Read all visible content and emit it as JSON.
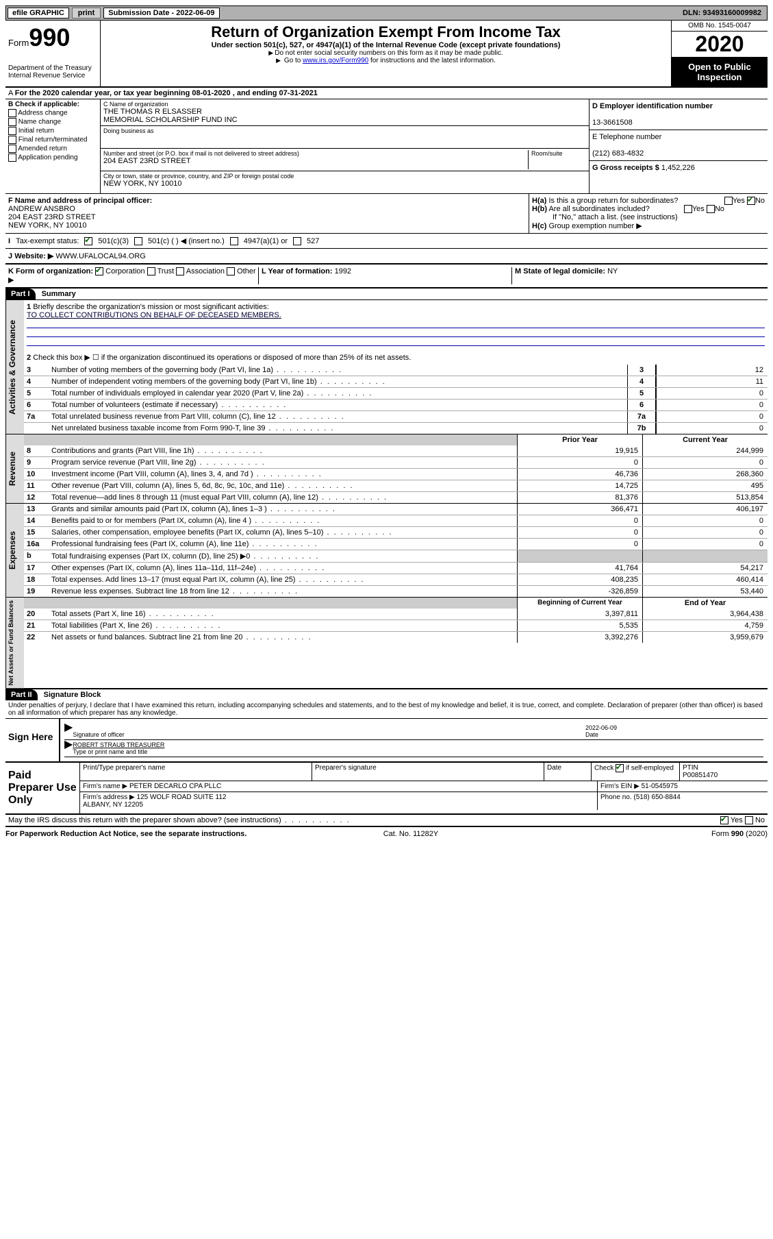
{
  "topbar": {
    "efile": "efile GRAPHIC",
    "print": "print",
    "submission": "Submission Date - 2022-06-09",
    "dln": "DLN: 93493160009982"
  },
  "header": {
    "form_word": "Form",
    "form_num": "990",
    "dept": "Department of the Treasury\nInternal Revenue Service",
    "title": "Return of Organization Exempt From Income Tax",
    "sub": "Under section 501(c), 527, or 4947(a)(1) of the Internal Revenue Code (except private foundations)",
    "note1": "Do not enter social security numbers on this form as it may be made public.",
    "note2_pre": "Go to ",
    "note2_link": "www.irs.gov/Form990",
    "note2_post": " for instructions and the latest information.",
    "omb": "OMB No. 1545-0047",
    "year": "2020",
    "open": "Open to Public Inspection"
  },
  "period": "For the 2020 calendar year, or tax year beginning 08-01-2020   , and ending 07-31-2021",
  "checkB": {
    "header": "Check if applicable:",
    "items": [
      "Address change",
      "Name change",
      "Initial return",
      "Final return/terminated",
      "Amended return",
      "Application pending"
    ]
  },
  "org": {
    "name_lbl": "C Name of organization",
    "name": "THE THOMAS R ELSASSER\nMEMORIAL SCHOLARSHIP FUND INC",
    "dba_lbl": "Doing business as",
    "addr_lbl": "Number and street (or P.O. box if mail is not delivered to street address)",
    "room_lbl": "Room/suite",
    "addr": "204 EAST 23RD STREET",
    "city_lbl": "City or town, state or province, country, and ZIP or foreign postal code",
    "city": "NEW YORK, NY  10010"
  },
  "ein": {
    "lbl": "D Employer identification number",
    "val": "13-3661508"
  },
  "phone": {
    "lbl": "E Telephone number",
    "val": "(212) 683-4832"
  },
  "gross": {
    "lbl": "G Gross receipts $",
    "val": "1,452,226"
  },
  "officer": {
    "lbl": "F  Name and address of principal officer:",
    "name": "ANDREW ANSBRO",
    "addr": "204 EAST 23RD STREET\nNEW YORK, NY  10010"
  },
  "groupH": {
    "a": "Is this a group return for subordinates?",
    "b": "Are all subordinates included?",
    "b_note": "If \"No,\" attach a list. (see instructions)",
    "c": "Group exemption number ▶",
    "yes": "Yes",
    "no": "No"
  },
  "taxI": {
    "lbl": "Tax-exempt status:",
    "o1": "501(c)(3)",
    "o2": "501(c) (  )  ◀ (insert no.)",
    "o3": "4947(a)(1) or",
    "o4": "527"
  },
  "website": {
    "lbl": "Website: ▶",
    "val": "WWW.UFALOCAL94.ORG"
  },
  "kform": {
    "lbl": "K Form of organization:",
    "corp": "Corporation",
    "trust": "Trust",
    "assoc": "Association",
    "other": "Other ▶",
    "year_lbl": "L Year of formation:",
    "year": "1992",
    "state_lbl": "M State of legal domicile:",
    "state": "NY"
  },
  "part1": {
    "header": "Part I",
    "title": "Summary",
    "q1": "Briefly describe the organization's mission or most significant activities:",
    "q1_ans": "TO COLLECT CONTRIBUTIONS ON BEHALF OF DECEASED MEMBERS.",
    "q2": "Check this box ▶ ☐  if the organization discontinued its operations or disposed of more than 25% of its net assets.",
    "lines_gov": [
      {
        "n": "3",
        "t": "Number of voting members of the governing body (Part VI, line 1a)",
        "c": "3",
        "v": "12"
      },
      {
        "n": "4",
        "t": "Number of independent voting members of the governing body (Part VI, line 1b)",
        "c": "4",
        "v": "11"
      },
      {
        "n": "5",
        "t": "Total number of individuals employed in calendar year 2020 (Part V, line 2a)",
        "c": "5",
        "v": "0"
      },
      {
        "n": "6",
        "t": "Total number of volunteers (estimate if necessary)",
        "c": "6",
        "v": "0"
      },
      {
        "n": "7a",
        "t": "Total unrelated business revenue from Part VIII, column (C), line 12",
        "c": "7a",
        "v": "0"
      },
      {
        "n": "",
        "t": "Net unrelated business taxable income from Form 990-T, line 39",
        "c": "7b",
        "v": "0"
      }
    ],
    "prior": "Prior Year",
    "current": "Current Year",
    "rev": [
      {
        "n": "8",
        "t": "Contributions and grants (Part VIII, line 1h)",
        "p": "19,915",
        "c": "244,999"
      },
      {
        "n": "9",
        "t": "Program service revenue (Part VIII, line 2g)",
        "p": "0",
        "c": "0"
      },
      {
        "n": "10",
        "t": "Investment income (Part VIII, column (A), lines 3, 4, and 7d )",
        "p": "46,736",
        "c": "268,360"
      },
      {
        "n": "11",
        "t": "Other revenue (Part VIII, column (A), lines 5, 6d, 8c, 9c, 10c, and 11e)",
        "p": "14,725",
        "c": "495"
      },
      {
        "n": "12",
        "t": "Total revenue—add lines 8 through 11 (must equal Part VIII, column (A), line 12)",
        "p": "81,376",
        "c": "513,854"
      }
    ],
    "exp": [
      {
        "n": "13",
        "t": "Grants and similar amounts paid (Part IX, column (A), lines 1–3 )",
        "p": "366,471",
        "c": "406,197"
      },
      {
        "n": "14",
        "t": "Benefits paid to or for members (Part IX, column (A), line 4 )",
        "p": "0",
        "c": "0"
      },
      {
        "n": "15",
        "t": "Salaries, other compensation, employee benefits (Part IX, column (A), lines 5–10)",
        "p": "0",
        "c": "0"
      },
      {
        "n": "16a",
        "t": "Professional fundraising fees (Part IX, column (A), line 11e)",
        "p": "0",
        "c": "0"
      },
      {
        "n": "b",
        "t": "Total fundraising expenses (Part IX, column (D), line 25) ▶0",
        "p": "",
        "c": "",
        "shade": true
      },
      {
        "n": "17",
        "t": "Other expenses (Part IX, column (A), lines 11a–11d, 11f–24e)",
        "p": "41,764",
        "c": "54,217"
      },
      {
        "n": "18",
        "t": "Total expenses. Add lines 13–17 (must equal Part IX, column (A), line 25)",
        "p": "408,235",
        "c": "460,414"
      },
      {
        "n": "19",
        "t": "Revenue less expenses. Subtract line 18 from line 12",
        "p": "-326,859",
        "c": "53,440"
      }
    ],
    "begin": "Beginning of Current Year",
    "end": "End of Year",
    "net": [
      {
        "n": "20",
        "t": "Total assets (Part X, line 16)",
        "p": "3,397,811",
        "c": "3,964,438"
      },
      {
        "n": "21",
        "t": "Total liabilities (Part X, line 26)",
        "p": "5,535",
        "c": "4,759"
      },
      {
        "n": "22",
        "t": "Net assets or fund balances. Subtract line 21 from line 20",
        "p": "3,392,276",
        "c": "3,959,679"
      }
    ]
  },
  "vtabs": {
    "gov": "Activities & Governance",
    "rev": "Revenue",
    "exp": "Expenses",
    "net": "Net Assets or Fund Balances"
  },
  "part2": {
    "header": "Part II",
    "title": "Signature Block",
    "decl": "Under penalties of perjury, I declare that I have examined this return, including accompanying schedules and statements, and to the best of my knowledge and belief, it is true, correct, and complete. Declaration of preparer (other than officer) is based on all information of which preparer has any knowledge."
  },
  "sign": {
    "here": "Sign Here",
    "sig_lbl": "Signature of officer",
    "date_lbl": "Date",
    "date": "2022-06-09",
    "name": "ROBERT STRAUB  TREASURER",
    "name_lbl": "Type or print name and title"
  },
  "paid": {
    "title": "Paid Preparer Use Only",
    "h1": "Print/Type preparer's name",
    "h2": "Preparer's signature",
    "h3": "Date",
    "h4_pre": "Check",
    "h4_post": "if self-employed",
    "h5": "PTIN",
    "ptin": "P00851470",
    "firm_lbl": "Firm's name    ▶",
    "firm": "PETER DECARLO CPA PLLC",
    "ein_lbl": "Firm's EIN ▶",
    "ein": "51-0545975",
    "addr_lbl": "Firm's address ▶",
    "addr": "125 WOLF ROAD SUITE 112\nALBANY, NY  12205",
    "phone_lbl": "Phone no.",
    "phone": "(518) 650-8844"
  },
  "footer": {
    "discuss": "May the IRS discuss this return with the preparer shown above? (see instructions)",
    "yes": "Yes",
    "no": "No",
    "pra": "For Paperwork Reduction Act Notice, see the separate instructions.",
    "cat": "Cat. No. 11282Y",
    "form": "Form 990 (2020)"
  }
}
